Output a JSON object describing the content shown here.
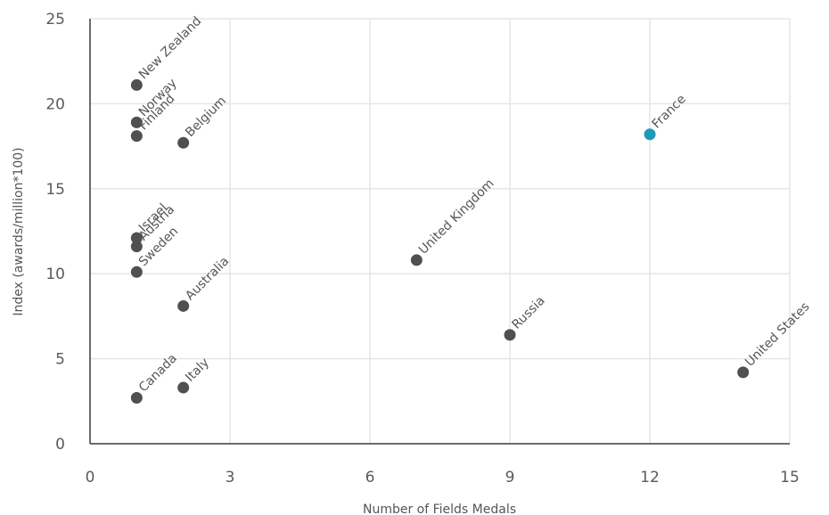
{
  "chart_data": {
    "type": "scatter",
    "title": "",
    "xlabel": "Number of Fields Medals",
    "ylabel": "Index (awards/million*100)",
    "xlim": [
      0,
      15
    ],
    "ylim": [
      0,
      25
    ],
    "xticks": [
      "0",
      "3",
      "6",
      "9",
      "12",
      "15"
    ],
    "yticks": [
      "0",
      "5",
      "10",
      "15",
      "20",
      "25"
    ],
    "grid": "vertical and horizontal",
    "points": [
      {
        "label": "New Zealand",
        "x": 1,
        "y": 21.1
      },
      {
        "label": "Norway",
        "x": 1,
        "y": 18.9
      },
      {
        "label": "Finland",
        "x": 1,
        "y": 18.1
      },
      {
        "label": "Belgium",
        "x": 2,
        "y": 17.7
      },
      {
        "label": "Israel",
        "x": 1,
        "y": 12.1
      },
      {
        "label": "Austria",
        "x": 1,
        "y": 11.6
      },
      {
        "label": "Sweden",
        "x": 1,
        "y": 10.1
      },
      {
        "label": "Australia",
        "x": 2,
        "y": 8.1
      },
      {
        "label": "Canada",
        "x": 1,
        "y": 2.7
      },
      {
        "label": "Italy",
        "x": 2,
        "y": 3.3
      },
      {
        "label": "United Kingdom",
        "x": 7,
        "y": 10.8
      },
      {
        "label": "Russia",
        "x": 9,
        "y": 6.4
      },
      {
        "label": "France",
        "x": 12,
        "y": 18.2,
        "highlight": true
      },
      {
        "label": "United States",
        "x": 14,
        "y": 4.2
      }
    ],
    "colors": {
      "default": "#505050",
      "highlight": "#1e9ab8"
    }
  }
}
